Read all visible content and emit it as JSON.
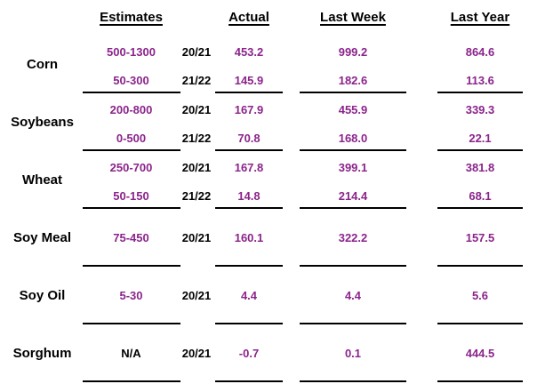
{
  "colors": {
    "value_purple": "#8b248b",
    "label_black": "#000000",
    "rule_black": "#000000",
    "background": "#ffffff"
  },
  "table": {
    "headers": [
      "Estimates",
      "Actual",
      "Last Week",
      "Last Year"
    ],
    "groups": [
      {
        "label": "Corn",
        "rows": [
          {
            "estimate": "500-1300",
            "year": "20/21",
            "actual": "453.2",
            "last_week": "999.2",
            "last_year": "864.6"
          },
          {
            "estimate": "50-300",
            "year": "21/22",
            "actual": "145.9",
            "last_week": "182.6",
            "last_year": "113.6"
          }
        ]
      },
      {
        "label": "Soybeans",
        "rows": [
          {
            "estimate": "200-800",
            "year": "20/21",
            "actual": "167.9",
            "last_week": "455.9",
            "last_year": "339.3"
          },
          {
            "estimate": "0-500",
            "year": "21/22",
            "actual": "70.8",
            "last_week": "168.0",
            "last_year": "22.1"
          }
        ]
      },
      {
        "label": "Wheat",
        "rows": [
          {
            "estimate": "250-700",
            "year": "20/21",
            "actual": "167.8",
            "last_week": "399.1",
            "last_year": "381.8"
          },
          {
            "estimate": "50-150",
            "year": "21/22",
            "actual": "14.8",
            "last_week": "214.4",
            "last_year": "68.1"
          }
        ]
      },
      {
        "label": "Soy Meal",
        "rows": [
          {
            "estimate": "75-450",
            "year": "20/21",
            "actual": "160.1",
            "last_week": "322.2",
            "last_year": "157.5"
          }
        ]
      },
      {
        "label": "Soy Oil",
        "rows": [
          {
            "estimate": "5-30",
            "year": "20/21",
            "actual": "4.4",
            "last_week": "4.4",
            "last_year": "5.6"
          }
        ]
      },
      {
        "label": "Sorghum",
        "rows": [
          {
            "estimate": "N/A",
            "year": "20/21",
            "actual": "-0.7",
            "last_week": "0.1",
            "last_year": "444.5"
          }
        ]
      }
    ]
  }
}
